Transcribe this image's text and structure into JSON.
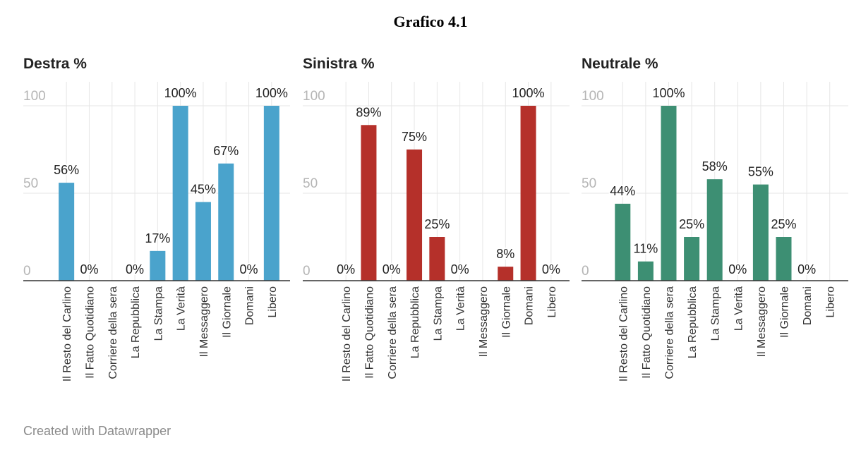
{
  "figure_title": "Grafico 4.1",
  "credit": "Created with Datawrapper",
  "chart_data": [
    {
      "type": "bar",
      "title": "Destra %",
      "color": "#4aa3cc",
      "ylim": [
        0,
        100
      ],
      "yticks": [
        0,
        50,
        100
      ],
      "categories": [
        "Il Resto del Carlino",
        "Il Fatto Quotidiano",
        "Corriere della sera",
        "La Repubblica",
        "La Stampa",
        "La Verità",
        "Il Messaggero",
        "Il Giornale",
        "Domani",
        "Libero"
      ],
      "values": [
        56,
        0,
        null,
        0,
        17,
        100,
        45,
        67,
        0,
        100
      ],
      "labels": [
        "56%",
        "0%",
        "",
        "0%",
        "17%",
        "100%",
        "45%",
        "67%",
        "0%",
        "100%"
      ]
    },
    {
      "type": "bar",
      "title": "Sinistra %",
      "color": "#b5302a",
      "ylim": [
        0,
        100
      ],
      "yticks": [
        0,
        50,
        100
      ],
      "categories": [
        "Il Resto del Carlino",
        "Il Fatto Quotidiano",
        "Corriere della sera",
        "La Repubblica",
        "La Stampa",
        "La Verità",
        "Il Messaggero",
        "Il Giornale",
        "Domani",
        "Libero"
      ],
      "values": [
        0,
        89,
        0,
        75,
        25,
        0,
        null,
        8,
        100,
        0
      ],
      "labels": [
        "0%",
        "89%",
        "0%",
        "75%",
        "25%",
        "0%",
        "",
        "8%",
        "100%",
        "0%"
      ]
    },
    {
      "type": "bar",
      "title": "Neutrale %",
      "color": "#3d8f73",
      "ylim": [
        0,
        100
      ],
      "yticks": [
        0,
        50,
        100
      ],
      "categories": [
        "Il Resto del Carlino",
        "Il Fatto Quotidiano",
        "Corriere della sera",
        "La Repubblica",
        "La Stampa",
        "La Verità",
        "Il Messaggero",
        "Il Giornale",
        "Domani",
        "Libero"
      ],
      "values": [
        44,
        11,
        100,
        25,
        58,
        0,
        55,
        25,
        0,
        null
      ],
      "labels": [
        "44%",
        "11%",
        "100%",
        "25%",
        "58%",
        "0%",
        "55%",
        "25%",
        "0%",
        ""
      ]
    }
  ]
}
